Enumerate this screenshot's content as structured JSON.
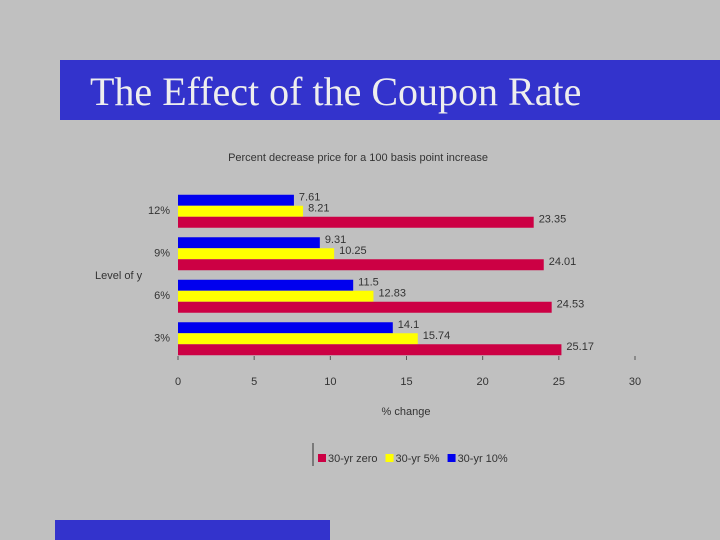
{
  "slide_title": "The Effect of the Coupon Rate",
  "chart_data": {
    "type": "hbar",
    "title": "Percent decrease price for a 100 basis point increase",
    "y_label": "Level of y",
    "x_label": "% change",
    "categories": [
      "12%",
      "9%",
      "6%",
      "3%"
    ],
    "series": [
      {
        "name": "30-yr zero",
        "color": "#cc0044",
        "values": [
          23.35,
          24.01,
          24.53,
          25.17
        ]
      },
      {
        "name": "30-yr 5%",
        "color": "#ffff00",
        "values": [
          8.21,
          10.25,
          12.83,
          15.74
        ]
      },
      {
        "name": "30-yr 10%",
        "color": "#0000ee",
        "values": [
          7.61,
          9.31,
          11.5,
          14.1
        ]
      }
    ],
    "xlim": [
      0,
      30
    ],
    "xticks": [
      0,
      5,
      10,
      15,
      20,
      25,
      30
    ],
    "legend": "bottom"
  }
}
